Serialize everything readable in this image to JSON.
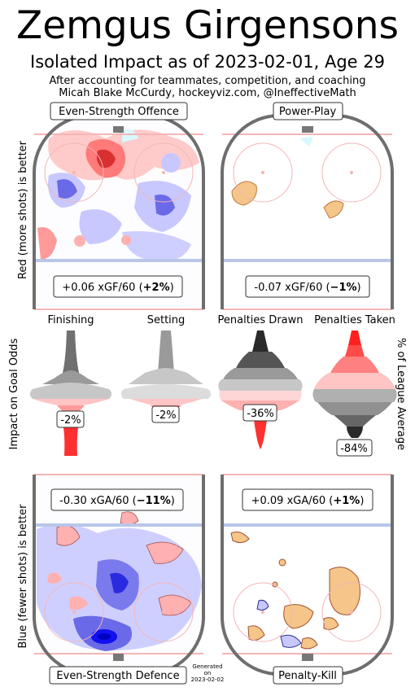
{
  "header": {
    "title": "Zemgus Girgensons",
    "subtitle": "Isolated Impact as of 2023-02-01, Age 29",
    "note1": "After accounting for teammates, competition, and coaching",
    "note2": "Micah Blake McCurdy, hockeyviz.com, @IneffectiveMath"
  },
  "labels": {
    "offence_axis": "Red (more shots) is better",
    "defence_axis": "Blue (fewer shots) is better",
    "impact_axis": "Impact on Goal Odds",
    "league_axis": "% of League Average",
    "generated": [
      "Generated",
      "on",
      "2023-02-02"
    ]
  },
  "panels": {
    "ev_offence": {
      "label": "Even-Strength Offence",
      "stat_prefix": "+0.06 xGF/60 (",
      "stat_bold": "+2%",
      "stat_suffix": ")"
    },
    "power_play": {
      "label": "Power-Play",
      "stat_prefix": "-0.07 xGF/60 (",
      "stat_bold": "−1%",
      "stat_suffix": ")"
    },
    "ev_defence": {
      "label": "Even-Strength Defence",
      "stat_prefix": "-0.30 xGA/60 (",
      "stat_bold": "−11%",
      "stat_suffix": ")"
    },
    "penalty_kill": {
      "label": "Penalty-Kill",
      "stat_prefix": "+0.09 xGA/60 (",
      "stat_bold": "+1%",
      "stat_suffix": ")"
    }
  },
  "chart_data": {
    "type": "violin",
    "columns": [
      {
        "name": "Finishing",
        "value": "-2%",
        "value_num": -2
      },
      {
        "name": "Setting",
        "value": "-2%",
        "value_num": -2
      },
      {
        "name": "Penalties Drawn",
        "value": "-36%",
        "value_num": -36
      },
      {
        "name": "Penalties Taken",
        "value": "-84%",
        "value_num": -84
      }
    ]
  },
  "colors": {
    "rink_border": "#6e6e6e",
    "red_line": "#f4b6b6",
    "blue_line": "#b9c6e8",
    "more_shots": "#ff5050",
    "fewer_shots": "#5050ff",
    "special_teams": "#f5c58a"
  }
}
